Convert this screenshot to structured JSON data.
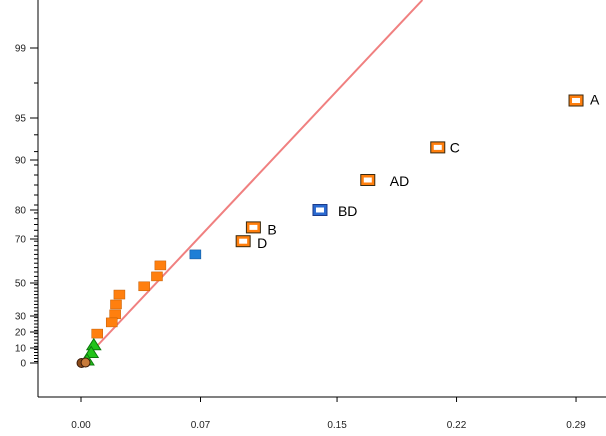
{
  "colors": {
    "reference_line": "#f08080",
    "error_point": "#ff7f0e",
    "effect_fill": "#ffffff",
    "effect_outline_default": "#5a3a10",
    "blue_point": "#1e7fd6",
    "green_point": "#22c41a",
    "green_edge": "#0c7a0c",
    "axis": "#000000"
  },
  "chart_data": {
    "type": "scatter",
    "title": "",
    "xlabel": "",
    "ylabel": "",
    "x_ticks": [
      {
        "value": 0.0,
        "label": "0.00"
      },
      {
        "value": 0.07,
        "label": "0.07"
      },
      {
        "value": 0.15,
        "label": "0.15"
      },
      {
        "value": 0.22,
        "label": "0.22"
      },
      {
        "value": 0.29,
        "label": "0.29"
      }
    ],
    "y_ticks": [
      {
        "value": 0,
        "label": "0"
      },
      {
        "value": 10,
        "label": "10"
      },
      {
        "value": 20,
        "label": "20"
      },
      {
        "value": 30,
        "label": "30"
      },
      {
        "value": 50,
        "label": "50"
      },
      {
        "value": 70,
        "label": "70"
      },
      {
        "value": 80,
        "label": "80"
      },
      {
        "value": 90,
        "label": "90"
      },
      {
        "value": 95,
        "label": "95"
      },
      {
        "value": 99,
        "label": "99"
      }
    ],
    "xlim": [
      -0.015,
      0.3
    ],
    "y_scale": "normal probability (percent)",
    "reference_line": {
      "from": [
        0.0,
        0.0
      ],
      "to": [
        0.2,
        99.9
      ]
    },
    "effects": [
      {
        "label": "A",
        "x": 0.29,
        "y": 96.0,
        "outline": "#3a2a10",
        "inner": "#ff7f0e"
      },
      {
        "label": "C",
        "x": 0.209,
        "y": 91.5,
        "outline": "#3a2a10",
        "inner": "#ff7f0e"
      },
      {
        "label": "AD",
        "x": 0.168,
        "y": 86.0,
        "outline": "#3a2a10",
        "inner": "#ff7f0e"
      },
      {
        "label": "BD",
        "x": 0.14,
        "y": 80.0,
        "outline": "#1a3a8a",
        "inner": "#2a6ad0"
      },
      {
        "label": "B",
        "x": 0.101,
        "y": 74.0,
        "outline": "#3a2a10",
        "inner": "#ff7f0e"
      },
      {
        "label": "D",
        "x": 0.095,
        "y": 69.0,
        "outline": "#3a2a10",
        "inner": "#ff7f0e"
      }
    ],
    "error_points": [
      {
        "x": 0.0465,
        "y": 58
      },
      {
        "x": 0.0445,
        "y": 53
      },
      {
        "x": 0.037,
        "y": 48
      },
      {
        "x": 0.0225,
        "y": 43
      },
      {
        "x": 0.0205,
        "y": 37
      },
      {
        "x": 0.02,
        "y": 31
      },
      {
        "x": 0.018,
        "y": 26
      },
      {
        "x": 0.0095,
        "y": 19
      }
    ],
    "blue_points": [
      {
        "x": 0.067,
        "y": 63
      }
    ],
    "green_points": [
      {
        "x": 0.0075,
        "y": 12
      },
      {
        "x": 0.006,
        "y": 7
      },
      {
        "x": 0.0035,
        "y": 2
      }
    ],
    "origin_points": [
      {
        "x": 0.0003,
        "y": 0.0
      },
      {
        "x": 0.0015,
        "y": 0.3
      }
    ]
  }
}
